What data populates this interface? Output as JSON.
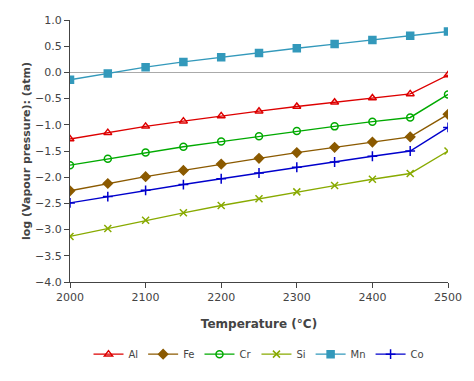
{
  "chart_data": {
    "type": "line",
    "xlabel": "Temperature (°C)",
    "ylabel": "log (Vapour pressure): (atm)",
    "x": [
      2000,
      2050,
      2100,
      2150,
      2200,
      2250,
      2300,
      2350,
      2400,
      2450,
      2500
    ],
    "series": [
      {
        "name": "Al",
        "color": "#dd0000",
        "marker": "triangle-up-open",
        "values": [
          -1.27,
          -1.15,
          -1.03,
          -0.93,
          -0.83,
          -0.74,
          -0.65,
          -0.57,
          -0.49,
          -0.41,
          -0.05
        ]
      },
      {
        "name": "Fe",
        "color": "#8B5A00",
        "marker": "diamond",
        "values": [
          -2.26,
          -2.12,
          -1.99,
          -1.87,
          -1.75,
          -1.64,
          -1.53,
          -1.43,
          -1.33,
          -1.23,
          -0.8
        ]
      },
      {
        "name": "Cr",
        "color": "#00aa00",
        "marker": "circle-open",
        "values": [
          -1.77,
          -1.65,
          -1.53,
          -1.42,
          -1.32,
          -1.22,
          -1.12,
          -1.03,
          -0.94,
          -0.86,
          -0.42
        ]
      },
      {
        "name": "Si",
        "color": "#88aa00",
        "marker": "x-thin",
        "values": [
          -3.13,
          -2.98,
          -2.82,
          -2.68,
          -2.54,
          -2.41,
          -2.28,
          -2.16,
          -2.04,
          -1.93,
          -1.5
        ]
      },
      {
        "name": "Mn",
        "color": "#3399bb",
        "marker": "square",
        "values": [
          -0.14,
          -0.02,
          0.1,
          0.2,
          0.29,
          0.37,
          0.46,
          0.54,
          0.62,
          0.7,
          0.78
        ]
      },
      {
        "name": "Co",
        "color": "#0000cc",
        "marker": "cross-thin",
        "values": [
          -2.49,
          -2.37,
          -2.25,
          -2.14,
          -2.03,
          -1.92,
          -1.81,
          -1.71,
          -1.6,
          -1.5,
          -1.05
        ]
      }
    ],
    "xlim": [
      2000,
      2500
    ],
    "ylim": [
      -4.0,
      1.0
    ],
    "xticks": [
      2000,
      2100,
      2200,
      2300,
      2400,
      2500
    ],
    "yticks": [
      {
        "value": -4.0,
        "label": "−4.0"
      },
      {
        "value": -3.5,
        "label": "−3.5"
      },
      {
        "value": -3.0,
        "label": "−3.0"
      },
      {
        "value": -2.5,
        "label": "−2.5"
      },
      {
        "value": -2.0,
        "label": "−2.0"
      },
      {
        "value": -1.5,
        "label": "−1.5"
      },
      {
        "value": -1.0,
        "label": "−1.0"
      },
      {
        "value": -0.5,
        "label": "−0.5"
      },
      {
        "value": 0.0,
        "label": "0.0"
      },
      {
        "value": 0.5,
        "label": "0.5"
      },
      {
        "value": 1.0,
        "label": "1.0"
      }
    ],
    "grid": false,
    "legend": "lower center"
  }
}
